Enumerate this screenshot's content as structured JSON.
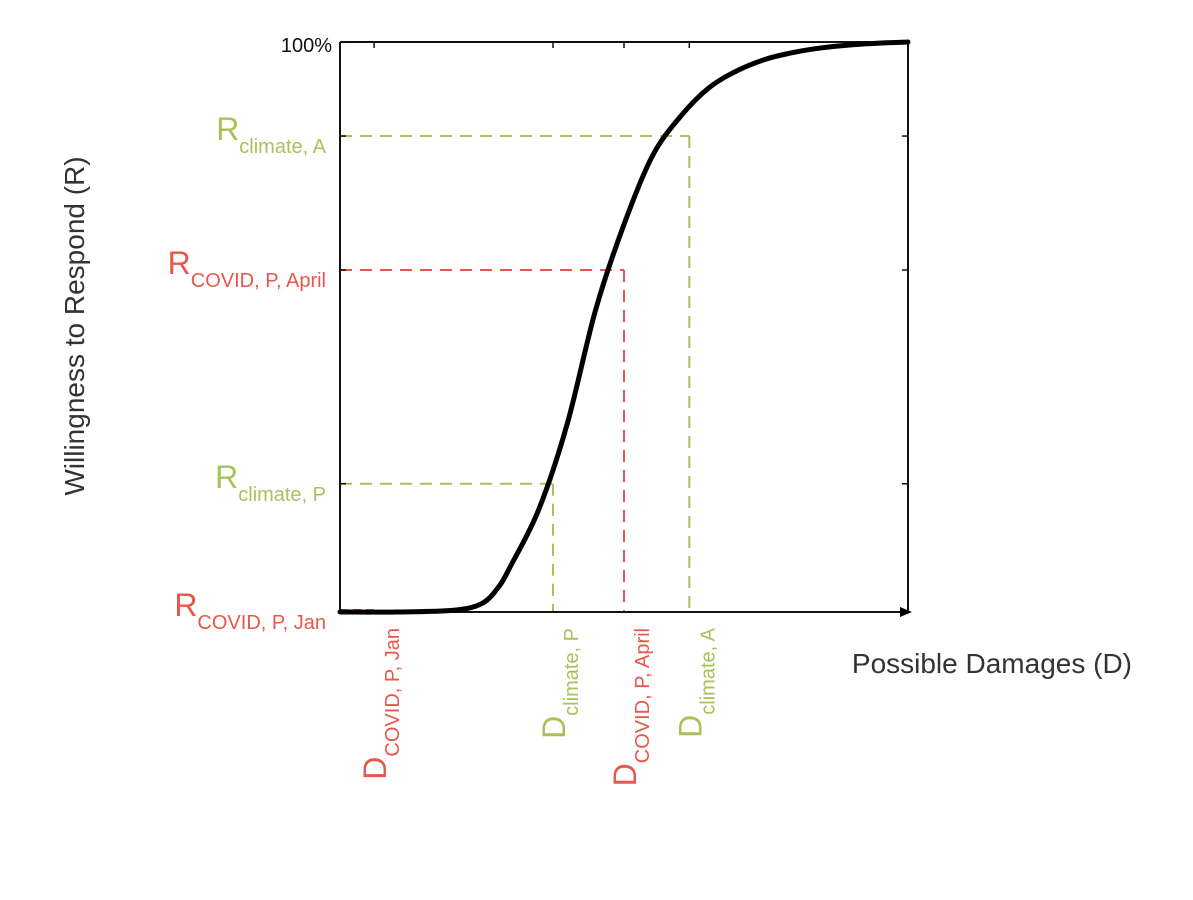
{
  "chart_data": {
    "type": "line",
    "title": "",
    "xlabel": "Possible Damages (D)",
    "ylabel": "Willingness to Respond (R)",
    "y_top_tick": "100%",
    "grid": false,
    "xlim": [
      0,
      1
    ],
    "ylim": [
      0,
      1
    ],
    "curve": {
      "x": [
        0.0,
        0.1,
        0.2,
        0.25,
        0.28,
        0.3,
        0.35,
        0.4,
        0.45,
        0.5,
        0.55,
        0.6,
        0.65,
        0.7,
        0.75,
        0.8,
        0.85,
        0.9,
        0.95,
        1.0
      ],
      "y": [
        0.0,
        0.0,
        0.003,
        0.015,
        0.045,
        0.08,
        0.18,
        0.33,
        0.53,
        0.68,
        0.8,
        0.87,
        0.92,
        0.95,
        0.97,
        0.982,
        0.99,
        0.995,
        0.998,
        1.0
      ]
    },
    "markers": [
      {
        "key": "r_covid_jan",
        "x": 0.06,
        "y": 0.0,
        "color": "#e8574a",
        "guide": "none"
      },
      {
        "key": "climate_p",
        "x": 0.375,
        "y": 0.225,
        "color": "#a9c159",
        "guide": "both"
      },
      {
        "key": "covid_april",
        "x": 0.5,
        "y": 0.6,
        "color": "#e8574a",
        "guide": "both"
      },
      {
        "key": "climate_a",
        "x": 0.615,
        "y": 0.835,
        "color": "#a9c159",
        "guide": "both"
      }
    ],
    "y_labels": [
      {
        "main": "R",
        "sub": "climate, A",
        "color": "#a9c159",
        "y": 0.835
      },
      {
        "main": "R",
        "sub": "COVID, P, April",
        "color": "#e8574a",
        "y": 0.6
      },
      {
        "main": "R",
        "sub": "climate, P",
        "color": "#a9c159",
        "y": 0.225
      },
      {
        "main": "R",
        "sub": "COVID, P, Jan",
        "color": "#e8574a",
        "y": 0.0
      }
    ],
    "x_labels": [
      {
        "main": "D",
        "sub": "COVID, P, Jan",
        "color": "#e8574a",
        "x": 0.06
      },
      {
        "main": "D",
        "sub": "climate, P",
        "color": "#a9c159",
        "x": 0.375
      },
      {
        "main": "D",
        "sub": "COVID, P, April",
        "color": "#e8574a",
        "x": 0.5
      },
      {
        "main": "D",
        "sub": "climate, A",
        "color": "#a9c159",
        "x": 0.615
      }
    ],
    "y_ticks": [
      0.225,
      0.6,
      0.835
    ]
  }
}
